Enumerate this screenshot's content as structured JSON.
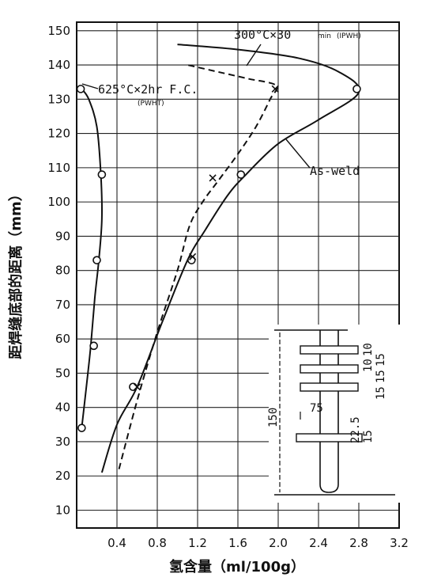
{
  "chart_data": {
    "type": "line",
    "xlabel": "氢含量（ml/100g）",
    "ylabel": "距焊缝底部的距离（mm）",
    "xlim": [
      0,
      3.2
    ],
    "ylim": [
      10,
      150
    ],
    "xticks": [
      "0.4",
      "0.8",
      "1.2",
      "1.6",
      "2.0",
      "2.4",
      "2.8",
      "3.2"
    ],
    "yticks": [
      "10",
      "20",
      "30",
      "40",
      "50",
      "60",
      "70",
      "80",
      "90",
      "100",
      "110",
      "120",
      "130",
      "140",
      "150"
    ],
    "grid": true,
    "series": [
      {
        "name": "As-weld",
        "style": "solid",
        "markers": "open-circle",
        "x": [
          0.25,
          0.4,
          0.6,
          0.85,
          1.1,
          1.28,
          1.5,
          1.68,
          2.0,
          2.4,
          2.8,
          2.6,
          2.2,
          1.6,
          1.0
        ],
        "y": [
          21,
          35,
          46,
          65,
          83,
          92,
          102,
          108,
          117,
          124,
          132,
          138,
          142,
          144.5,
          146
        ],
        "marker_points": [
          [
            0.56,
            46
          ],
          [
            1.14,
            83
          ],
          [
            1.63,
            108
          ],
          [
            2.78,
            133
          ]
        ]
      },
      {
        "name": "625°C×2hr F.C. (PWHT)",
        "style": "solid",
        "markers": "open-circle",
        "x": [
          0.05,
          0.1,
          0.14,
          0.18,
          0.22,
          0.25,
          0.24,
          0.2,
          0.12,
          0.05
        ],
        "y": [
          34,
          47,
          58,
          72,
          83,
          95,
          108,
          122,
          130,
          133
        ],
        "marker_points": [
          [
            0.05,
            34
          ],
          [
            0.17,
            58
          ],
          [
            0.2,
            83
          ],
          [
            0.25,
            108
          ],
          [
            0.04,
            133
          ]
        ]
      },
      {
        "name": "300°C×30min (IPWH)",
        "style": "dashed",
        "markers": "x",
        "x": [
          0.42,
          0.6,
          0.8,
          1.0,
          1.12,
          1.25,
          1.4,
          1.6,
          1.78,
          1.92,
          1.98,
          1.7,
          1.4,
          1.1
        ],
        "y": [
          22,
          42,
          62,
          80,
          93,
          100,
          106,
          114,
          122,
          130,
          134,
          136,
          138,
          140
        ],
        "marker_points": [
          [
            0.6,
            46
          ],
          [
            1.15,
            84
          ],
          [
            1.35,
            107
          ],
          [
            1.97,
            133
          ]
        ]
      }
    ],
    "annotations": {
      "label_300": "300°C×30",
      "label_300_min": "min",
      "label_300_paren": "(IPWH)",
      "label_625": "625°C×2hr F.C.",
      "label_625_paren": "(PWHT)",
      "label_asweld": "As-weld"
    },
    "specimen_diagram": {
      "dim_total": "150",
      "dim_75": "75",
      "dim_22_5": "22.5",
      "dim_15": "15",
      "dim_10_a": "10",
      "dim_10_b": "10",
      "dim_15_a": "15",
      "dim_15_b": "15",
      "dim_15_c": "15"
    }
  }
}
